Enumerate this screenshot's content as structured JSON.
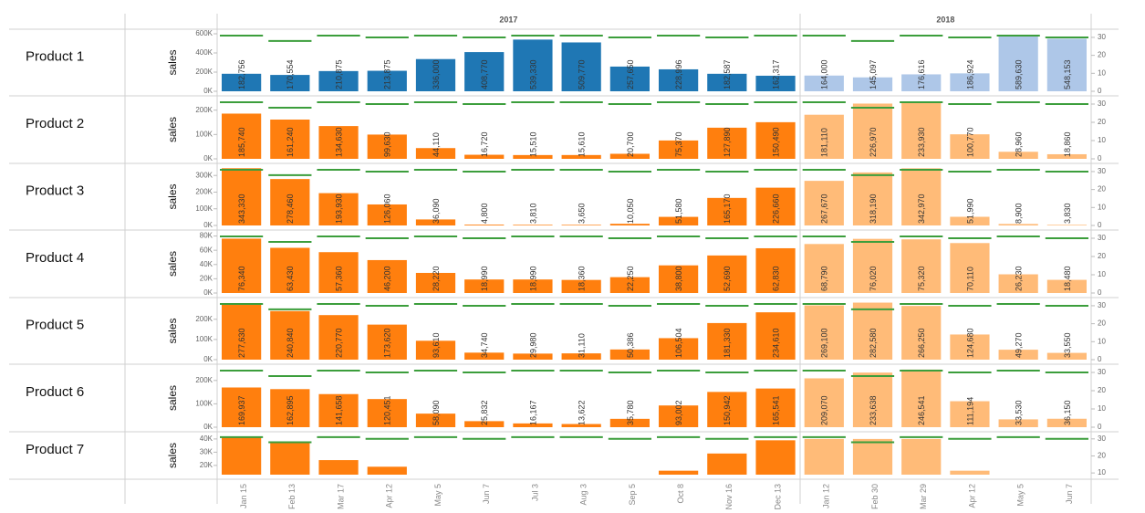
{
  "chart_data": {
    "type": "bar",
    "groups": [
      {
        "label": "2017",
        "categories": [
          "Jan 15",
          "Feb 13",
          "Mar 17",
          "Apr 12",
          "May 5",
          "Jun 7",
          "Jul 3",
          "Aug 3",
          "Sep 5",
          "Oct 8",
          "Nov 16",
          "Dec 13"
        ]
      },
      {
        "label": "2018",
        "categories": [
          "Jan 12",
          "Feb 30",
          "Mar 29",
          "Apr 12",
          "May 5",
          "Jun 7"
        ]
      }
    ],
    "y2_color": "#3c9e3c",
    "panels": [
      {
        "label": "Product 1",
        "ylabel": "sales",
        "colors": [
          "#1f77b4",
          "#aec7e8"
        ],
        "ylim": [
          0,
          600000
        ],
        "yticks": [
          {
            "value": 0,
            "label": "0K"
          },
          {
            "value": 200000,
            "label": "200K"
          },
          {
            "value": 400000,
            "label": "400K"
          },
          {
            "value": 600000,
            "label": "600K"
          }
        ],
        "y2lim": [
          0,
          32
        ],
        "y2ticks": [
          0,
          10,
          20,
          30
        ],
        "values": [
          182756,
          170554,
          210875,
          213875,
          336000,
          408770,
          539330,
          509770,
          257650,
          228996,
          182587,
          162317,
          164000,
          145097,
          176616,
          186924,
          589630,
          548153
        ],
        "value_labels": [
          "182,756",
          "170,554",
          "210,875",
          "213,875",
          "336,000",
          "408,770",
          "539,330",
          "509,770",
          "257,650",
          "228,996",
          "182,587",
          "162,317",
          "164,000",
          "145,097",
          "176,616",
          "186,924",
          "589,630",
          "548,153"
        ],
        "y2_values": [
          31,
          28,
          31,
          30,
          31,
          30,
          31,
          31,
          30,
          31,
          30,
          31,
          31,
          28,
          31,
          30,
          31,
          30
        ]
      },
      {
        "label": "Product 2",
        "ylabel": "sales",
        "colors": [
          "#ff7f0e",
          "#ffbb78"
        ],
        "ylim": [
          0,
          240000
        ],
        "yticks": [
          {
            "value": 0,
            "label": "0K"
          },
          {
            "value": 100000,
            "label": "100K"
          },
          {
            "value": 200000,
            "label": "200K"
          }
        ],
        "y2lim": [
          0,
          32
        ],
        "y2ticks": [
          0,
          10,
          20,
          30
        ],
        "values": [
          185740,
          161240,
          134630,
          99630,
          44110,
          16720,
          15510,
          15610,
          20700,
          75370,
          127890,
          150490,
          181110,
          226970,
          233930,
          100770,
          28960,
          18860
        ],
        "value_labels": [
          "185,740",
          "161,240",
          "134,630",
          "99,630",
          "44,110",
          "16,720",
          "15,510",
          "15,610",
          "20,700",
          "75,370",
          "127,890",
          "150,490",
          "181,110",
          "226,970",
          "233,930",
          "100,770",
          "28,960",
          "18,860"
        ],
        "y2_values": [
          31,
          28,
          31,
          30,
          31,
          30,
          31,
          31,
          30,
          31,
          30,
          31,
          31,
          28,
          31,
          30,
          31,
          30
        ]
      },
      {
        "label": "Product 3",
        "ylabel": "sales",
        "colors": [
          "#ff7f0e",
          "#ffbb78"
        ],
        "ylim": [
          0,
          345000
        ],
        "yticks": [
          {
            "value": 0,
            "label": "0K"
          },
          {
            "value": 100000,
            "label": "100K"
          },
          {
            "value": 200000,
            "label": "200K"
          },
          {
            "value": 300000,
            "label": "300K"
          }
        ],
        "y2lim": [
          0,
          32
        ],
        "y2ticks": [
          0,
          10,
          20,
          30
        ],
        "values": [
          343330,
          278460,
          193930,
          126060,
          36090,
          4800,
          3810,
          3650,
          10050,
          51580,
          165170,
          226660,
          267670,
          318190,
          342970,
          51990,
          8900,
          3830
        ],
        "value_labels": [
          "343,330",
          "278,460",
          "193,930",
          "126,060",
          "36,090",
          "4,800",
          "3,810",
          "3,650",
          "10,050",
          "51,580",
          "165,170",
          "226,660",
          "267,670",
          "318,190",
          "342,970",
          "51,990",
          "8,900",
          "3,830"
        ],
        "y2_values": [
          31,
          28,
          31,
          30,
          31,
          30,
          31,
          31,
          30,
          31,
          30,
          31,
          31,
          28,
          31,
          30,
          31,
          30
        ]
      },
      {
        "label": "Product 4",
        "ylabel": "sales",
        "colors": [
          "#ff7f0e",
          "#ffbb78"
        ],
        "ylim": [
          0,
          82000
        ],
        "yticks": [
          {
            "value": 0,
            "label": "0K"
          },
          {
            "value": 20000,
            "label": "20K"
          },
          {
            "value": 40000,
            "label": "40K"
          },
          {
            "value": 60000,
            "label": "60K"
          },
          {
            "value": 80000,
            "label": "80K"
          }
        ],
        "y2lim": [
          0,
          32
        ],
        "y2ticks": [
          0,
          10,
          20,
          30
        ],
        "values": [
          76340,
          63430,
          57360,
          46200,
          28220,
          18990,
          18990,
          18360,
          22250,
          38800,
          52690,
          62830,
          68790,
          76020,
          75320,
          70110,
          26230,
          18480
        ],
        "value_labels": [
          "76,340",
          "63,430",
          "57,360",
          "46,200",
          "28,220",
          "18,990",
          "18,990",
          "18,360",
          "22,250",
          "38,800",
          "52,690",
          "62,830",
          "68,790",
          "76,020",
          "75,320",
          "70,110",
          "26,230",
          "18,480"
        ],
        "y2_values": [
          31,
          28,
          31,
          30,
          31,
          30,
          31,
          31,
          30,
          31,
          30,
          31,
          31,
          28,
          31,
          30,
          31,
          30
        ]
      },
      {
        "label": "Product 5",
        "ylabel": "sales",
        "colors": [
          "#ff7f0e",
          "#ffbb78"
        ],
        "ylim": [
          0,
          285000
        ],
        "yticks": [
          {
            "value": 0,
            "label": "0K"
          },
          {
            "value": 100000,
            "label": "100K"
          },
          {
            "value": 200000,
            "label": "200K"
          }
        ],
        "y2lim": [
          0,
          32
        ],
        "y2ticks": [
          0,
          10,
          20,
          30
        ],
        "values": [
          277630,
          240840,
          220770,
          173620,
          93610,
          34740,
          29980,
          31110,
          50386,
          106504,
          181330,
          234610,
          269100,
          282580,
          266250,
          124680,
          49270,
          33550
        ],
        "value_labels": [
          "277,630",
          "240,840",
          "220,770",
          "173,620",
          "93,610",
          "34,740",
          "29,980",
          "31,110",
          "50,386",
          "106,504",
          "181,330",
          "234,610",
          "269,100",
          "282,580",
          "266,250",
          "124,680",
          "49,270",
          "33,550"
        ],
        "y2_values": [
          31,
          28,
          31,
          30,
          31,
          30,
          31,
          31,
          30,
          31,
          30,
          31,
          31,
          28,
          31,
          30,
          31,
          30
        ]
      },
      {
        "label": "Product 6",
        "ylabel": "sales",
        "colors": [
          "#ff7f0e",
          "#ffbb78"
        ],
        "ylim": [
          0,
          250000
        ],
        "yticks": [
          {
            "value": 0,
            "label": "0K"
          },
          {
            "value": 100000,
            "label": "100K"
          },
          {
            "value": 200000,
            "label": "200K"
          }
        ],
        "y2lim": [
          0,
          32
        ],
        "y2ticks": [
          0,
          10,
          20,
          30
        ],
        "values": [
          169937,
          162895,
          141658,
          120451,
          58090,
          25832,
          16167,
          13622,
          35780,
          93002,
          150942,
          165541,
          209070,
          233638,
          246541,
          111194,
          33530,
          36150
        ],
        "value_labels": [
          "169,937",
          "162,895",
          "141,658",
          "120,451",
          "58,090",
          "25,832",
          "16,167",
          "13,622",
          "35,780",
          "93,002",
          "150,942",
          "165,541",
          "209,070",
          "233,638",
          "246,541",
          "111,194",
          "33,530",
          "36,150"
        ],
        "y2_values": [
          31,
          28,
          31,
          30,
          31,
          30,
          31,
          31,
          30,
          31,
          30,
          31,
          31,
          28,
          31,
          30,
          31,
          30
        ]
      },
      {
        "label": "Product 7",
        "ylabel": "sales",
        "colors": [
          "#ff7f0e",
          "#ffbb78"
        ],
        "ylim": [
          13000,
          42000
        ],
        "yticks": [
          {
            "value": 20000,
            "label": "20K"
          },
          {
            "value": 30000,
            "label": "30K"
          },
          {
            "value": 40000,
            "label": "40K"
          }
        ],
        "y2lim": [
          9,
          31.5
        ],
        "y2ticks": [
          10,
          20,
          30
        ],
        "values": [
          41000,
          37000,
          24000,
          19000,
          null,
          null,
          null,
          null,
          null,
          16000,
          29000,
          39000,
          40000,
          40000,
          40000,
          16000,
          null,
          null
        ],
        "y2_values": [
          31,
          28,
          31,
          30,
          31,
          30,
          31,
          31,
          30,
          31,
          30,
          31,
          31,
          28,
          31,
          30,
          31,
          30
        ]
      }
    ]
  }
}
